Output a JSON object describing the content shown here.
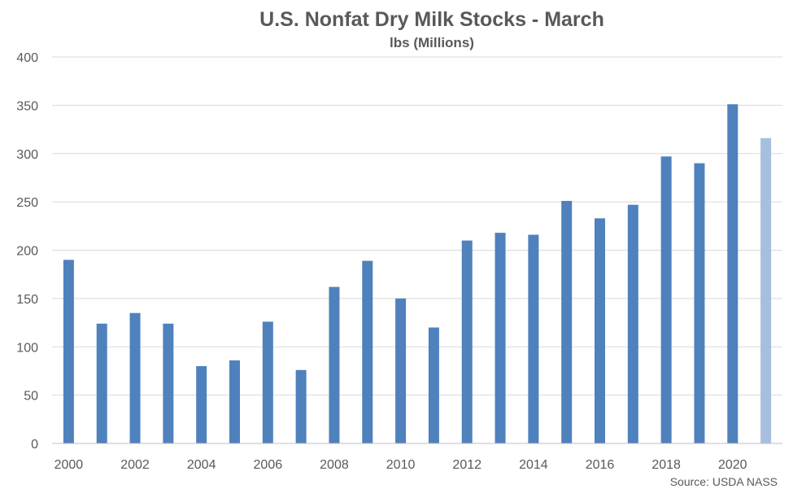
{
  "chart_data": {
    "type": "bar",
    "title": "U.S. Nonfat Dry Milk Stocks - March",
    "subtitle": "lbs (Millions)",
    "source": "Source: USDA NASS",
    "categories": [
      "2000",
      "2001",
      "2002",
      "2003",
      "2004",
      "2005",
      "2006",
      "2007",
      "2008",
      "2009",
      "2010",
      "2011",
      "2012",
      "2013",
      "2014",
      "2015",
      "2016",
      "2017",
      "2018",
      "2019",
      "2020",
      "2021"
    ],
    "x_tick_labels": [
      "2000",
      "",
      "2002",
      "",
      "2004",
      "",
      "2006",
      "",
      "2008",
      "",
      "2010",
      "",
      "2012",
      "",
      "2014",
      "",
      "2016",
      "",
      "2018",
      "",
      "2020",
      ""
    ],
    "series": [
      {
        "values": [
          190,
          124,
          135,
          124,
          80,
          86,
          126,
          76,
          162,
          189,
          150,
          120,
          210,
          218,
          216,
          251,
          233,
          247,
          297,
          290,
          351,
          316
        ]
      }
    ],
    "ylim": [
      0,
      400
    ],
    "yticks": [
      0,
      50,
      100,
      150,
      200,
      250,
      300,
      350,
      400
    ],
    "grid": true,
    "colors": {
      "bar": "#4f81bd",
      "bar_highlight": "#a6bfdf",
      "text": "#595959",
      "grid": "#d9d9d9"
    },
    "highlight_index": 21
  }
}
